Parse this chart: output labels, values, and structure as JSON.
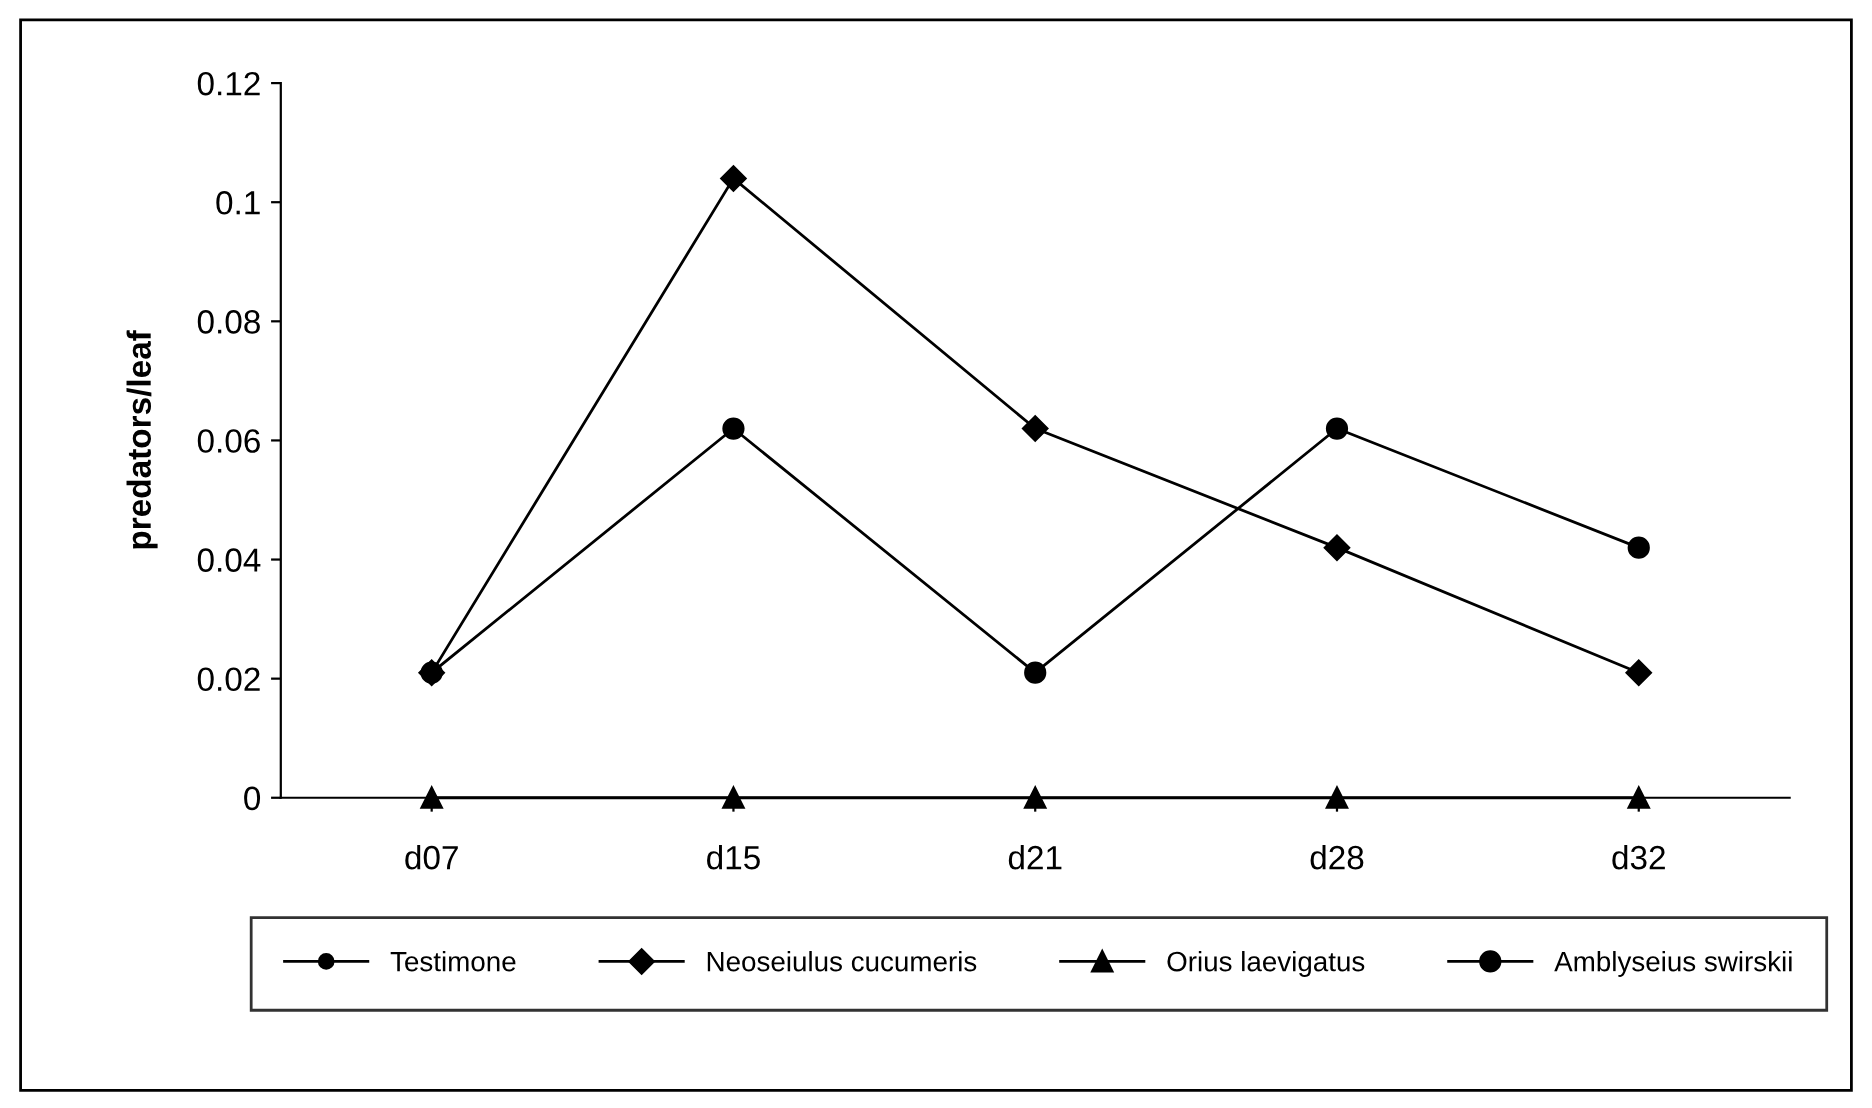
{
  "chart_data": {
    "type": "line",
    "ylabel": "predators/leaf",
    "categories": [
      "d07",
      "d15",
      "d21",
      "d28",
      "d32"
    ],
    "series": [
      {
        "name": "Testimone",
        "color": "#000000",
        "marker": "circle",
        "values": [
          null,
          null,
          null,
          null,
          null
        ]
      },
      {
        "name": "Neoseiulus cucumeris",
        "color": "#000000",
        "marker": "diamond",
        "values": [
          0.021,
          0.104,
          0.062,
          0.042,
          0.021
        ]
      },
      {
        "name": "Orius laevigatus",
        "color": "#000000",
        "marker": "triangle",
        "values": [
          0,
          0,
          0,
          0,
          0
        ]
      },
      {
        "name": "Amblyseius swirskii",
        "color": "#000000",
        "marker": "circle",
        "values": [
          0.021,
          0.062,
          0.021,
          0.062,
          0.042
        ]
      }
    ],
    "ylim": [
      0,
      0.12
    ],
    "yticks": [
      0,
      0.02,
      0.04,
      0.06,
      0.08,
      0.1,
      0.12
    ],
    "grid": false,
    "legend": "bottom",
    "line_style": "solid"
  }
}
